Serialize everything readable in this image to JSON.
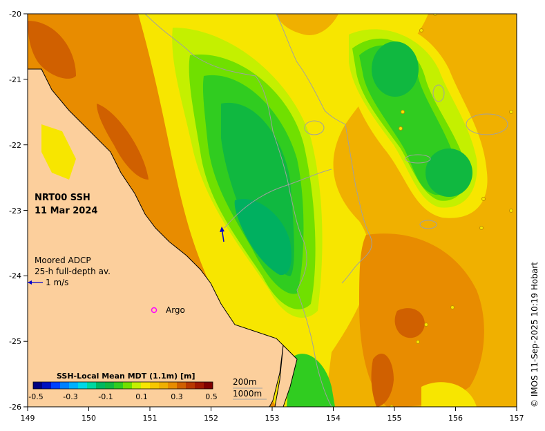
{
  "map": {
    "title_line1": "NRT00 SSH",
    "title_line2": "11 Mar 2024",
    "adcp_line1": "Moored ADCP",
    "adcp_line2": "25-h full-depth av.",
    "adcp_scale": "1 m/s",
    "argo_label": "Argo",
    "colorbar_title": "SSH-Local Mean MDT (1.1m) [m]",
    "colorbar_ticks": [
      "-0.5",
      "-0.3",
      "-0.1",
      "0.1",
      "0.3",
      "0.5"
    ],
    "isobath_200": "200m",
    "isobath_1000": "1000m",
    "credit": "© IMOS 11-Sep-2025 10:19 Hobart",
    "x_ticks": [
      "149",
      "150",
      "151",
      "152",
      "153",
      "154",
      "155",
      "156",
      "157"
    ],
    "y_ticks": [
      "-20",
      "-21",
      "-22",
      "-23",
      "-24",
      "-25",
      "-26"
    ],
    "lon_range": [
      149,
      157
    ],
    "lat_range": [
      -26,
      -20
    ],
    "colors": {
      "land": "#fccf9c",
      "coast": "#000000",
      "isobath": "#a0a0a0",
      "argo": "#ff00ff",
      "adcp_arrow": "#0000cc"
    }
  }
}
